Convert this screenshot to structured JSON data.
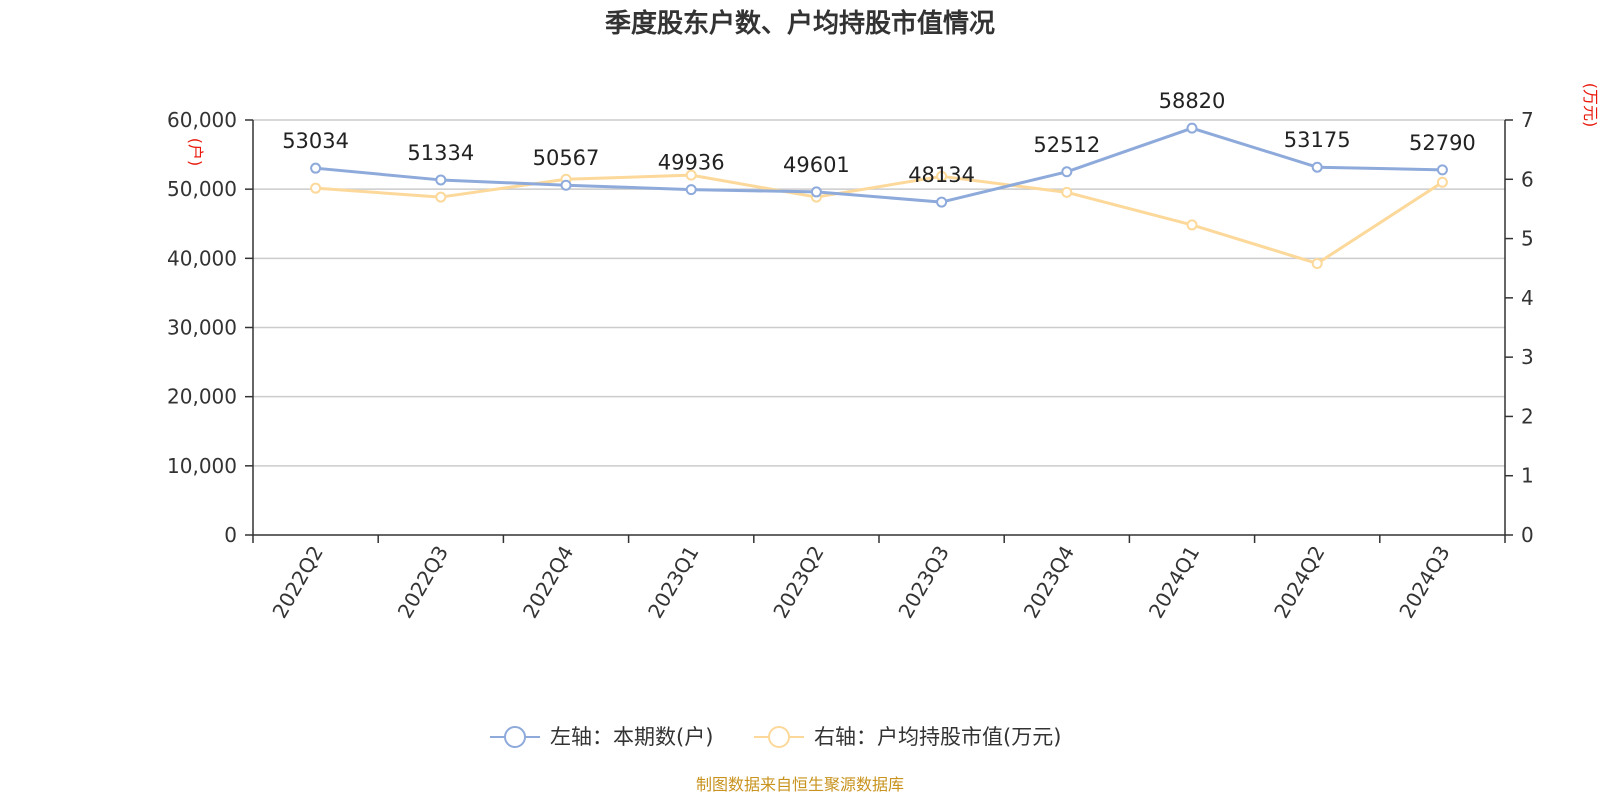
{
  "chart_data": {
    "type": "line",
    "title": "季度股东户数、户均持股市值情况",
    "categories": [
      "2022Q2",
      "2022Q3",
      "2022Q4",
      "2023Q1",
      "2023Q2",
      "2023Q3",
      "2023Q4",
      "2024Q1",
      "2024Q2",
      "2024Q3"
    ],
    "series": [
      {
        "name": "左轴：本期数(户)",
        "axis": "left",
        "color": "#8eaadb",
        "values": [
          53034,
          51334,
          50567,
          49936,
          49601,
          48134,
          52512,
          58820,
          53175,
          52790
        ],
        "show_data_labels": true
      },
      {
        "name": "右轴：户均持股市值(万元)",
        "axis": "right",
        "color": "#fcd99a",
        "values": [
          5.85,
          5.7,
          6.0,
          6.07,
          5.7,
          6.05,
          5.78,
          5.23,
          4.58,
          5.95
        ],
        "show_data_labels": false
      }
    ],
    "left_axis": {
      "unit": "(户)",
      "ylim": [
        0,
        60000
      ],
      "ticks": [
        0,
        10000,
        20000,
        30000,
        40000,
        50000,
        60000
      ],
      "tick_labels": [
        "0",
        "10,000",
        "20,000",
        "30,000",
        "40,000",
        "50,000",
        "60,000"
      ]
    },
    "right_axis": {
      "unit": "(万元)",
      "ylim": [
        0,
        7
      ],
      "ticks": [
        0,
        1,
        2,
        3,
        4,
        5,
        6,
        7
      ],
      "tick_labels": [
        "0",
        "1",
        "2",
        "3",
        "4",
        "5",
        "6",
        "7"
      ]
    },
    "grid": true,
    "legend_position": "bottom",
    "source": "制图数据来自恒生聚源数据库"
  }
}
